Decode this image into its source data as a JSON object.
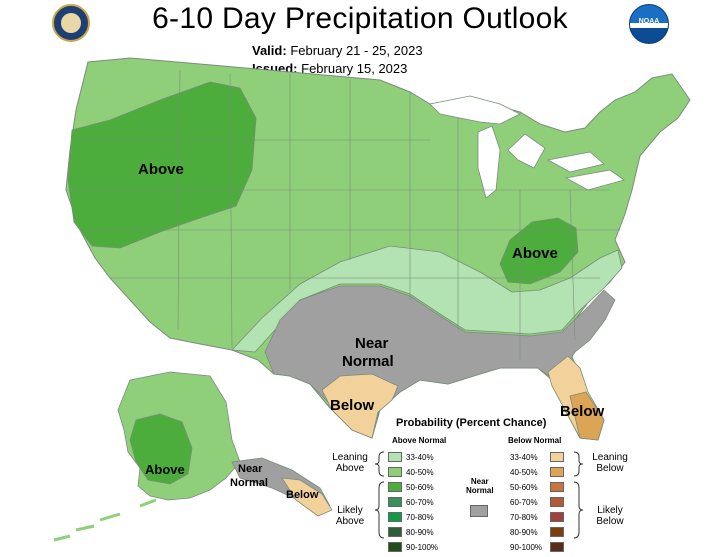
{
  "header": {
    "title": "6-10 Day Precipitation Outlook",
    "valid_label": "Valid:",
    "valid_value": "February 21 - 25, 2023",
    "issued_label": "Issued:",
    "issued_value": "February 15, 2023",
    "left_logo_icon": "doc-seal-icon",
    "right_logo_icon": "noaa-logo-icon",
    "right_logo_text": "NOAA"
  },
  "map": {
    "labels": {
      "above_west": "Above",
      "above_east": "Above",
      "near_normal_line1": "Near",
      "near_normal_line2": "Normal",
      "below_texas": "Below",
      "below_florida": "Below",
      "above_alaska": "Above",
      "near_normal_ak_line1": "Near",
      "near_normal_ak_line2": "Normal",
      "below_ak": "Below"
    },
    "colors": {
      "above_33_40": "#b3e2b3",
      "above_40_50": "#8fcf7a",
      "above_50_60": "#4cad3d",
      "near_normal": "#a0a0a0",
      "below_33_40": "#f2d29a",
      "below_40_50": "#dba555",
      "state_border": "#7a8c7a",
      "water": "#ffffff"
    }
  },
  "legend": {
    "title": "Probability (Percent Chance)",
    "above_heading": "Above Normal",
    "below_heading": "Below Normal",
    "near_heading_line1": "Near",
    "near_heading_line2": "Normal",
    "leaning_above_line1": "Leaning",
    "leaning_above_line2": "Above",
    "likely_above_line1": "Likely",
    "likely_above_line2": "Above",
    "leaning_below_line1": "Leaning",
    "leaning_below_line2": "Below",
    "likely_below_line1": "Likely",
    "likely_below_line2": "Below",
    "above_items": [
      {
        "label": "33-40%",
        "color": "#b3e2b3"
      },
      {
        "label": "40-50%",
        "color": "#8fcf7a"
      },
      {
        "label": "50-60%",
        "color": "#4cad3d"
      },
      {
        "label": "60-70%",
        "color": "#3a8f5a"
      },
      {
        "label": "70-80%",
        "color": "#119944"
      },
      {
        "label": "80-90%",
        "color": "#2e5e3a"
      },
      {
        "label": "90-100%",
        "color": "#234d1a"
      }
    ],
    "below_items": [
      {
        "label": "33-40%",
        "color": "#f2d29a"
      },
      {
        "label": "40-50%",
        "color": "#dba555"
      },
      {
        "label": "50-60%",
        "color": "#c8733a"
      },
      {
        "label": "60-70%",
        "color": "#b05a3a"
      },
      {
        "label": "70-80%",
        "color": "#a0413a"
      },
      {
        "label": "80-90%",
        "color": "#7a3e10"
      },
      {
        "label": "90-100%",
        "color": "#5a2a1a"
      }
    ],
    "near_color": "#a0a0a0"
  }
}
